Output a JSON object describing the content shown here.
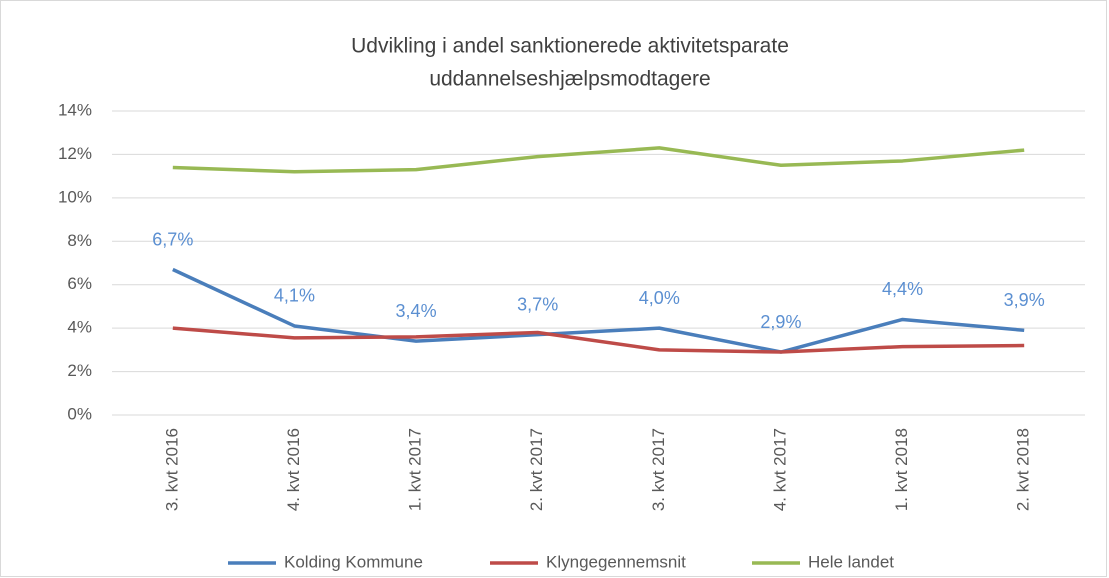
{
  "chart_data": {
    "type": "line",
    "title": [
      "Udvikling i andel sanktionerede aktivitetsparate",
      "uddannelseshjælpsmodtagere"
    ],
    "categories": [
      "3. kvt 2016",
      "4. kvt 2016",
      "1. kvt 2017",
      "2. kvt 2017",
      "3. kvt 2017",
      "4. kvt 2017",
      "1. kvt 2018",
      "2. kvt 2018"
    ],
    "series": [
      {
        "name": "Kolding Kommune",
        "color": "#4a7ebb",
        "values": [
          6.7,
          4.1,
          3.4,
          3.7,
          4.0,
          2.9,
          4.4,
          3.9
        ],
        "value_labels": [
          "6,7%",
          "4,1%",
          "3,4%",
          "3,7%",
          "4,0%",
          "2,9%",
          "4,4%",
          "3,9%"
        ]
      },
      {
        "name": "Klyngegennemsnit",
        "color": "#be4b48",
        "values": [
          4.0,
          3.55,
          3.6,
          3.8,
          3.0,
          2.9,
          3.15,
          3.2
        ]
      },
      {
        "name": "Hele landet",
        "color": "#98b954",
        "values": [
          11.4,
          11.2,
          11.3,
          11.9,
          12.3,
          11.5,
          11.7,
          12.2
        ]
      }
    ],
    "ylim": [
      0,
      14
    ],
    "yticks": [
      {
        "value": 0,
        "label": "0%"
      },
      {
        "value": 2,
        "label": "2%"
      },
      {
        "value": 4,
        "label": "4%"
      },
      {
        "value": 6,
        "label": "6%"
      },
      {
        "value": 8,
        "label": "8%"
      },
      {
        "value": 10,
        "label": "10%"
      },
      {
        "value": 12,
        "label": "12%"
      },
      {
        "value": 14,
        "label": "14%"
      }
    ],
    "grid": true,
    "legend": "bottom"
  }
}
